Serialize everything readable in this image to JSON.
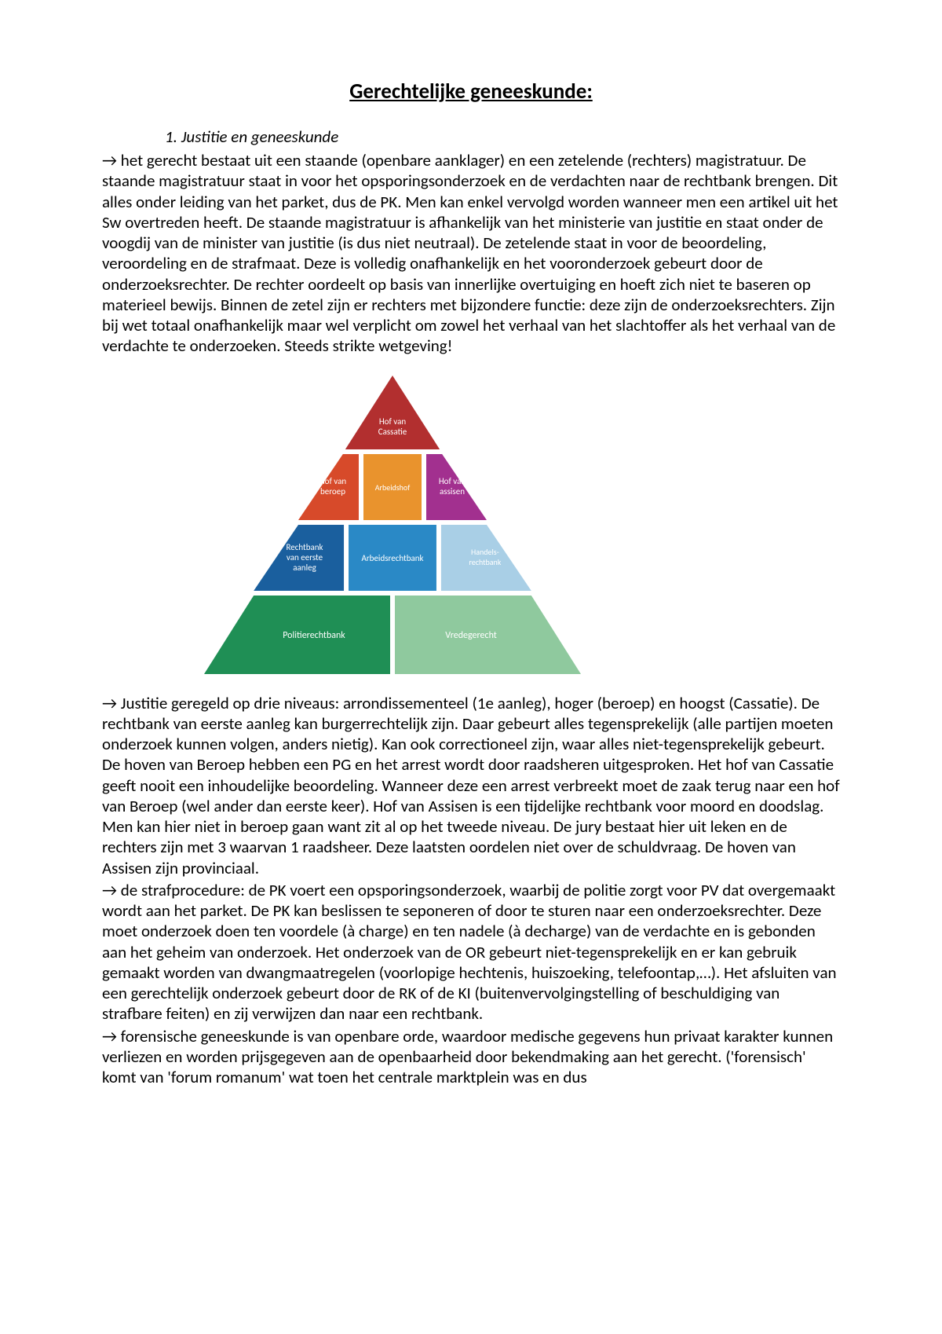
{
  "title": "Gerechtelijke geneeskunde:",
  "section1": {
    "num": "1.",
    "heading": "Justitie en geneeskunde"
  },
  "para1": "→ het gerecht bestaat uit een staande (openbare aanklager) en een zetelende (rechters) magistratuur. De staande magistratuur staat in voor het opsporingsonderzoek en de verdachten naar de rechtbank brengen. Dit alles onder leiding van het parket, dus de PK.  Men kan enkel vervolgd worden wanneer men een artikel uit het Sw overtreden heeft. De staande magistratuur is afhankelijk van het ministerie van justitie en staat onder de voogdij van de minister van justitie (is dus niet neutraal). De zetelende staat in voor de beoordeling, veroordeling en de strafmaat. Deze is volledig onafhankelijk en het vooronderzoek gebeurt door de onderzoeksrechter. De rechter oordeelt op basis van innerlijke overtuiging en hoeft zich niet te baseren op materieel bewijs. Binnen de zetel zijn er rechters met bijzondere functie: deze zijn de onderzoeksrechters. Zijn bij wet totaal onafhankelijk maar wel verplicht om zowel het verhaal van het slachtoffer als het verhaal van de verdachte te onderzoeken. Steeds strikte wetgeving!",
  "para2": "→ Justitie geregeld op drie niveaus: arrondissementeel (1e aanleg), hoger (beroep) en hoogst (Cassatie). De rechtbank van eerste aanleg kan burgerrechtelijk zijn. Daar gebeurt alles tegensprekelijk (alle partijen moeten onderzoek kunnen volgen, anders nietig). Kan ook correctioneel zijn, waar alles niet-tegensprekelijk gebeurt. De hoven van Beroep hebben een PG en het arrest wordt door raadsheren uitgesproken. Het hof van Cassatie geeft nooit een inhoudelijke beoordeling. Wanneer deze een arrest verbreekt moet de zaak terug naar een hof van Beroep (wel ander dan eerste keer). Hof van Assisen is een tijdelijke rechtbank voor moord en doodslag. Men kan hier niet in beroep gaan want zit al op het tweede niveau. De jury bestaat hier uit leken en de rechters zijn met 3 waarvan 1 raadsheer. Deze laatsten oordelen niet over de schuldvraag. De hoven van Assisen zijn provinciaal.",
  "para3": "→ de strafprocedure: de PK voert een opsporingsonderzoek, waarbij de politie zorgt voor PV dat overgemaakt wordt aan het parket. De PK kan beslissen te seponeren of door te sturen naar een onderzoeksrechter. Deze moet onderzoek doen ten voordele (à charge) en ten nadele (à decharge) van de verdachte en is gebonden aan het geheim van onderzoek. Het onderzoek van de OR gebeurt niet-tegensprekelijk en er kan gebruik gemaakt worden van dwangmaatregelen (voorlopige hechtenis, huiszoeking, telefoontap,…). Het afsluiten van een gerechtelijk onderzoek gebeurt door de RK of de KI (buitenvervolgingstelling of beschuldiging van strafbare feiten) en zij verwijzen dan naar een rechtbank.",
  "para4": "→ forensische geneeskunde is van openbare orde, waardoor medische gegevens hun privaat karakter kunnen verliezen en worden prijsgegeven aan de openbaarheid door bekendmaking aan het gerecht. ('forensisch' komt van 'forum romanum' wat toen het centrale marktplein was en dus",
  "pyramid": {
    "apex": {
      "label": "Hof van Cassatie",
      "color": "#b22f2f"
    },
    "row2_l": {
      "label": "Hof van beroep",
      "color": "#d74a2a"
    },
    "row2_m": {
      "label": "Arbeidshof",
      "color": "#e9932d"
    },
    "row2_r": {
      "label": "Hof van assisen",
      "color": "#a2308f"
    },
    "row3_l": {
      "label": "Rechtbank van eerste aanleg",
      "color": "#1a5f9e"
    },
    "row3_m": {
      "label": "Arbeidsrechtbank",
      "color": "#2a89c6"
    },
    "row3_r": {
      "label": "Handels-rechtbank",
      "color": "#a9cfe6"
    },
    "row4_l": {
      "label": "Politierechtbank",
      "color": "#1f8f55"
    },
    "row4_r": {
      "label": "Vredegerecht",
      "color": "#8fc99e"
    },
    "outline": {
      "tri_fill_left": "#ffffff",
      "tri_fill_right": "#ffffff"
    }
  }
}
